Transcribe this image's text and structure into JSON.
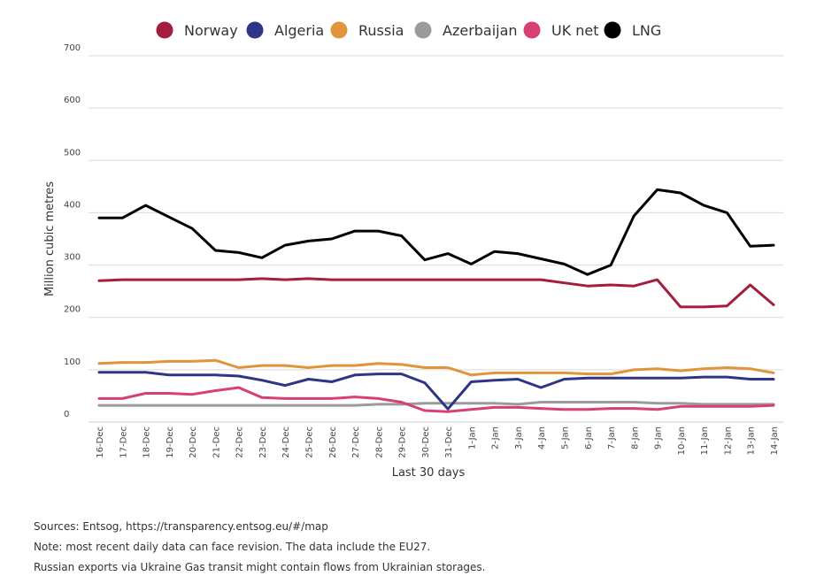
{
  "chart_data": {
    "type": "line",
    "title": "",
    "xlabel": "Last 30 days",
    "ylabel": "Million cubic metres",
    "ylim": [
      0,
      700
    ],
    "yticks": [
      0,
      100,
      200,
      300,
      400,
      500,
      600,
      700
    ],
    "grid": true,
    "legend_position": "top",
    "categories": [
      "16-Dec",
      "17-Dec",
      "18-Dec",
      "19-Dec",
      "20-Dec",
      "21-Dec",
      "22-Dec",
      "23-Dec",
      "24-Dec",
      "25-Dec",
      "26-Dec",
      "27-Dec",
      "28-Dec",
      "29-Dec",
      "30-Dec",
      "31-Dec",
      "1-Jan",
      "2-Jan",
      "3-Jan",
      "4-Jan",
      "5-Jan",
      "6-Jan",
      "7-Jan",
      "8-Jan",
      "9-Jan",
      "10-Jan",
      "11-Jan",
      "12-Jan",
      "13-Jan",
      "14-Jan"
    ],
    "series": [
      {
        "name": "Norway",
        "color": "#a51d3d",
        "values": [
          270,
          272,
          272,
          272,
          272,
          272,
          272,
          274,
          272,
          274,
          272,
          272,
          272,
          272,
          272,
          272,
          272,
          272,
          272,
          272,
          266,
          260,
          262,
          260,
          272,
          220,
          220,
          222,
          262,
          224
        ]
      },
      {
        "name": "Algeria",
        "color": "#2e3586",
        "values": [
          95,
          95,
          95,
          90,
          90,
          90,
          88,
          80,
          70,
          82,
          77,
          90,
          92,
          92,
          75,
          25,
          77,
          80,
          82,
          66,
          82,
          84,
          84,
          84,
          84,
          84,
          86,
          86,
          82,
          82
        ]
      },
      {
        "name": "Russia",
        "color": "#e0953a",
        "values": [
          112,
          114,
          114,
          116,
          116,
          118,
          104,
          108,
          108,
          104,
          108,
          108,
          112,
          110,
          104,
          104,
          90,
          94,
          94,
          94,
          94,
          92,
          92,
          100,
          102,
          98,
          102,
          104,
          102,
          94
        ]
      },
      {
        "name": "Azerbaijan",
        "color": "#9b9b9b",
        "values": [
          32,
          32,
          32,
          32,
          32,
          32,
          32,
          32,
          32,
          32,
          32,
          32,
          34,
          34,
          36,
          36,
          36,
          36,
          34,
          38,
          38,
          38,
          38,
          38,
          36,
          36,
          34,
          34,
          34,
          34
        ]
      },
      {
        "name": "UK net",
        "color": "#d83f74",
        "values": [
          45,
          45,
          55,
          55,
          53,
          60,
          66,
          47,
          45,
          45,
          45,
          48,
          45,
          38,
          22,
          20,
          24,
          28,
          28,
          26,
          24,
          24,
          26,
          26,
          24,
          30,
          30,
          30,
          30,
          32
        ]
      },
      {
        "name": "LNG",
        "color": "#000000",
        "values": [
          390,
          390,
          414,
          392,
          370,
          328,
          324,
          314,
          338,
          346,
          350,
          365,
          365,
          356,
          310,
          322,
          302,
          326,
          322,
          312,
          302,
          282,
          300,
          394,
          444,
          438,
          414,
          400,
          336,
          338
        ]
      }
    ]
  },
  "notes": {
    "sources": "Sources: Entsog,  https://transparency.entsog.eu/#/map",
    "note": "Note: most recent daily data can face revision. The data include the EU27.",
    "russia_note": "Russian exports via Ukraine Gas transit might contain flows from Ukrainian storages."
  }
}
